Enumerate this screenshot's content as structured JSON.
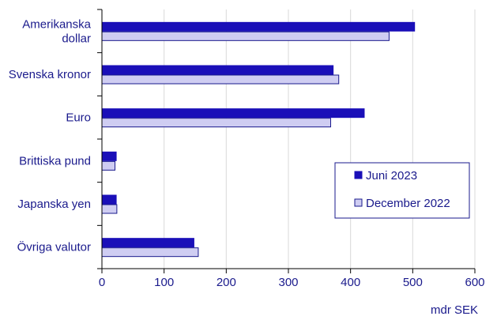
{
  "chart_data": {
    "type": "bar",
    "orientation": "horizontal",
    "categories": [
      "Amerikanska\ndollar",
      "Svenska kronor",
      "Euro",
      "Brittiska pund",
      "Japanska yen",
      "Övriga valutor"
    ],
    "series": [
      {
        "name": "Juni 2023",
        "values": [
          503,
          372,
          422,
          23,
          23,
          148
        ],
        "color": "#1a0fb8",
        "border": "#1a0fb8"
      },
      {
        "name": "December 2022",
        "values": [
          462,
          381,
          368,
          21,
          24,
          155
        ],
        "color": "#cfcdf2",
        "border": "#1a1a8c"
      }
    ],
    "x_ticks": [
      0,
      100,
      200,
      300,
      400,
      500,
      600
    ],
    "xlim": [
      0,
      600
    ],
    "unit_label": "mdr SEK",
    "grid": true,
    "legend_position": "right"
  }
}
